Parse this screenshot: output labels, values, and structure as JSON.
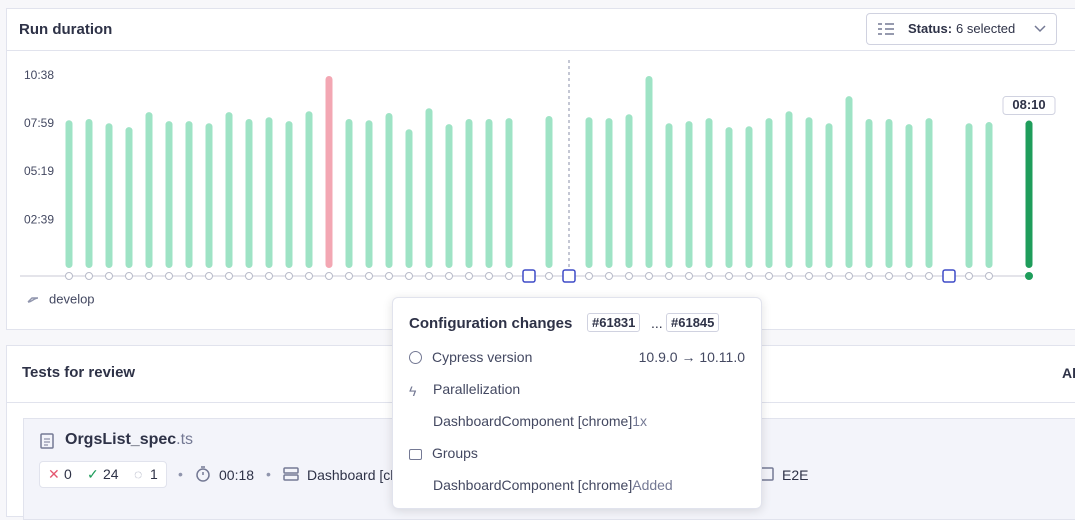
{
  "header": {
    "title": "Run duration",
    "status_label": "Status:",
    "status_value": "6 selected"
  },
  "chart_data": {
    "type": "bar",
    "values": [
      491,
      495,
      481,
      468,
      518,
      488,
      488,
      481,
      518,
      495,
      501,
      488,
      521,
      638,
      495,
      491,
      515,
      461,
      531,
      478,
      495,
      495,
      498,
      null,
      505,
      null,
      501,
      498,
      511,
      638,
      481,
      488,
      498,
      468,
      471,
      498,
      521,
      501,
      481,
      571,
      495,
      495,
      478,
      498,
      null,
      481,
      485,
      null,
      490
    ],
    "value_labels": [
      null,
      null,
      null,
      null,
      null,
      null,
      null,
      null,
      null,
      null,
      null,
      null,
      null,
      null,
      null,
      null,
      null,
      null,
      null,
      null,
      null,
      null,
      null,
      null,
      null,
      null,
      null,
      null,
      null,
      null,
      null,
      null,
      null,
      null,
      null,
      null,
      null,
      null,
      null,
      null,
      null,
      null,
      null,
      null,
      null,
      null,
      null,
      null,
      "08:10"
    ],
    "colors": [
      "#9ee3c5",
      "#9ee3c5",
      "#9ee3c5",
      "#9ee3c5",
      "#9ee3c5",
      "#9ee3c5",
      "#9ee3c5",
      "#9ee3c5",
      "#9ee3c5",
      "#9ee3c5",
      "#9ee3c5",
      "#9ee3c5",
      "#9ee3c5",
      "#f3a7b3",
      "#9ee3c5",
      "#9ee3c5",
      "#9ee3c5",
      "#9ee3c5",
      "#9ee3c5",
      "#9ee3c5",
      "#9ee3c5",
      "#9ee3c5",
      "#9ee3c5",
      null,
      "#9ee3c5",
      null,
      "#9ee3c5",
      "#9ee3c5",
      "#9ee3c5",
      "#9ee3c5",
      "#9ee3c5",
      "#9ee3c5",
      "#9ee3c5",
      "#9ee3c5",
      "#9ee3c5",
      "#9ee3c5",
      "#9ee3c5",
      "#9ee3c5",
      "#9ee3c5",
      "#9ee3c5",
      "#9ee3c5",
      "#9ee3c5",
      "#9ee3c5",
      "#9ee3c5",
      null,
      "#9ee3c5",
      "#9ee3c5",
      null,
      "#1f9d5b"
    ],
    "ylim": [
      0,
      638
    ],
    "yticks": [
      {
        "value": 159,
        "label": "02:39"
      },
      {
        "value": 319,
        "label": "05:19"
      },
      {
        "value": 479,
        "label": "07:59"
      },
      {
        "value": 638,
        "label": "10:38"
      }
    ],
    "branch": "develop"
  },
  "tooltip": {
    "title": "Configuration changes",
    "from": "#61831",
    "sep": "...",
    "to": "#61845",
    "rows": [
      [
        "Cypress version",
        "10.9.0 → 10.11.0"
      ],
      [
        "Parallelization",
        ""
      ],
      [
        "DashboardComponent [chrome]",
        "1x"
      ],
      [
        "Groups",
        ""
      ],
      [
        "DashboardComponent [chrome]",
        "Added"
      ]
    ]
  },
  "tests": {
    "title": "Tests for review",
    "action": "All",
    "spec": "OrgsList_spec",
    "ext": ".ts",
    "failed": "0",
    "passed": "24",
    "flaky": "1",
    "duration": "00:18",
    "group": "Dashboard [chrome]",
    "testing_type": "E2E"
  }
}
